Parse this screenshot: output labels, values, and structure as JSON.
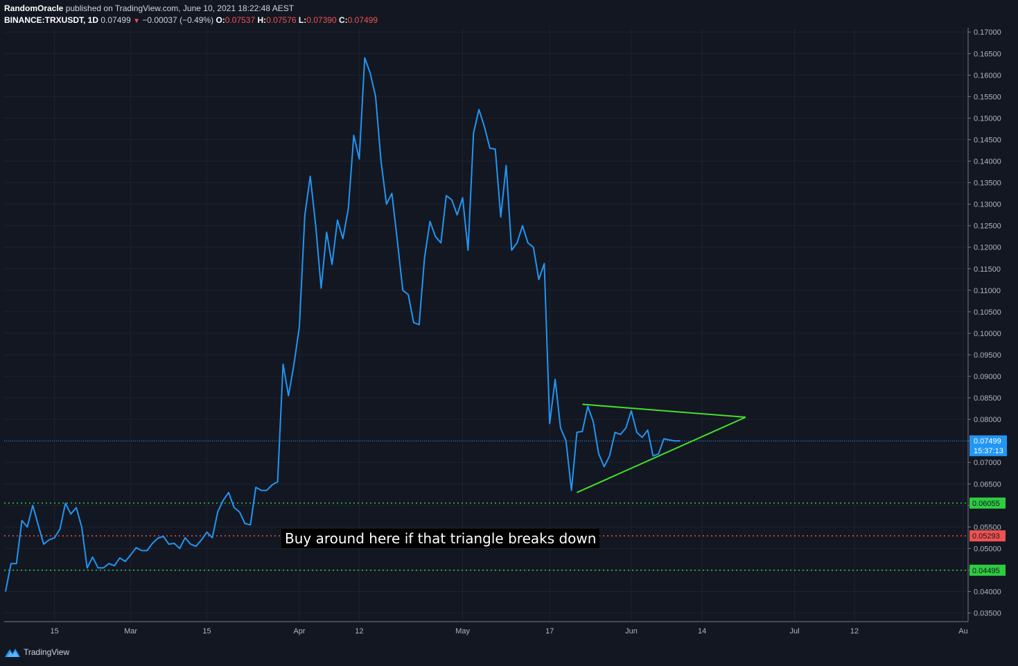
{
  "header": {
    "author": "RandomOracle",
    "published": "published on TradingView.com, June 10, 2021 18:22:48 AEST",
    "symbol": "BINANCE:TRXUSDT, 1D",
    "price": "0.07499",
    "change_arrow": "▼",
    "change": "−0.00037 (−0.49%)",
    "o_label": "O:",
    "o_value": "0.07537",
    "h_label": "H:",
    "h_value": "0.07576",
    "l_label": "L:",
    "l_value": "0.07390",
    "c_label": "C:",
    "c_value": "0.07499"
  },
  "footer": {
    "brand": "TradingView",
    "logo_icon": "tradingview-logo-icon"
  },
  "annotation": "Buy around here if that triangle breaks down",
  "colors": {
    "background": "#131722",
    "line": "#2196f3",
    "triangle": "#44e02c",
    "support": "#2ecc40",
    "stop": "#ef5350",
    "last_price_bg": "#2196f3"
  },
  "chart_data": {
    "type": "line",
    "title": "",
    "xlabel": "",
    "ylabel": "",
    "y_axis_position": "right",
    "ylim": [
      0.033,
      0.171
    ],
    "y_ticks": [
      "0.17000",
      "0.16500",
      "0.16000",
      "0.15500",
      "0.15000",
      "0.14500",
      "0.14000",
      "0.13500",
      "0.13000",
      "0.12500",
      "0.12000",
      "0.11500",
      "0.11000",
      "0.10500",
      "0.10000",
      "0.09500",
      "0.09000",
      "0.08500",
      "0.08000",
      "0.07500",
      "0.07000",
      "0.06500",
      "0.06000",
      "0.05500",
      "0.05000",
      "0.04500",
      "0.04000",
      "0.03500"
    ],
    "x_start": "2021-02-06",
    "x_end": "2021-08-01",
    "x_ticks": [
      {
        "date": "2021-02-15",
        "label": "15"
      },
      {
        "date": "2021-03-01",
        "label": "Mar"
      },
      {
        "date": "2021-03-15",
        "label": "15"
      },
      {
        "date": "2021-04-01",
        "label": "Apr"
      },
      {
        "date": "2021-04-12",
        "label": "12"
      },
      {
        "date": "2021-05-01",
        "label": "May"
      },
      {
        "date": "2021-05-17",
        "label": "17"
      },
      {
        "date": "2021-06-01",
        "label": "Jun"
      },
      {
        "date": "2021-06-14",
        "label": "14"
      },
      {
        "date": "2021-07-01",
        "label": "Jul"
      },
      {
        "date": "2021-07-12",
        "label": "12"
      },
      {
        "date": "2021-08-01",
        "label": "Au"
      }
    ],
    "series": [
      {
        "x": [
          "2021-02-06",
          "2021-02-07",
          "2021-02-08",
          "2021-02-09",
          "2021-02-10",
          "2021-02-11",
          "2021-02-12",
          "2021-02-13",
          "2021-02-14",
          "2021-02-15",
          "2021-02-16",
          "2021-02-17",
          "2021-02-18",
          "2021-02-19",
          "2021-02-20",
          "2021-02-21",
          "2021-02-22",
          "2021-02-23",
          "2021-02-24",
          "2021-02-25",
          "2021-02-26",
          "2021-02-27",
          "2021-02-28",
          "2021-03-01",
          "2021-03-02",
          "2021-03-03",
          "2021-03-04",
          "2021-03-05",
          "2021-03-06",
          "2021-03-07",
          "2021-03-08",
          "2021-03-09",
          "2021-03-10",
          "2021-03-11",
          "2021-03-12",
          "2021-03-13",
          "2021-03-14",
          "2021-03-15",
          "2021-03-16",
          "2021-03-17",
          "2021-03-18",
          "2021-03-19",
          "2021-03-20",
          "2021-03-21",
          "2021-03-22",
          "2021-03-23",
          "2021-03-24",
          "2021-03-25",
          "2021-03-26",
          "2021-03-27",
          "2021-03-28",
          "2021-03-29",
          "2021-03-30",
          "2021-03-31",
          "2021-04-01",
          "2021-04-02",
          "2021-04-03",
          "2021-04-04",
          "2021-04-05",
          "2021-04-06",
          "2021-04-07",
          "2021-04-08",
          "2021-04-09",
          "2021-04-10",
          "2021-04-11",
          "2021-04-12",
          "2021-04-13",
          "2021-04-14",
          "2021-04-15",
          "2021-04-16",
          "2021-04-17",
          "2021-04-18",
          "2021-04-19",
          "2021-04-20",
          "2021-04-21",
          "2021-04-22",
          "2021-04-23",
          "2021-04-24",
          "2021-04-25",
          "2021-04-26",
          "2021-04-27",
          "2021-04-28",
          "2021-04-29",
          "2021-04-30",
          "2021-05-01",
          "2021-05-02",
          "2021-05-03",
          "2021-05-04",
          "2021-05-05",
          "2021-05-06",
          "2021-05-07",
          "2021-05-08",
          "2021-05-09",
          "2021-05-10",
          "2021-05-11",
          "2021-05-12",
          "2021-05-13",
          "2021-05-14",
          "2021-05-15",
          "2021-05-16",
          "2021-05-17",
          "2021-05-18",
          "2021-05-19",
          "2021-05-20",
          "2021-05-21",
          "2021-05-22",
          "2021-05-23",
          "2021-05-24",
          "2021-05-25",
          "2021-05-26",
          "2021-05-27",
          "2021-05-28",
          "2021-05-29",
          "2021-05-30",
          "2021-05-31",
          "2021-06-01",
          "2021-06-02",
          "2021-06-03",
          "2021-06-04",
          "2021-06-05",
          "2021-06-06",
          "2021-06-07",
          "2021-06-08",
          "2021-06-09",
          "2021-06-10"
        ],
        "y": [
          0.04,
          0.0465,
          0.0465,
          0.0565,
          0.055,
          0.06,
          0.0555,
          0.051,
          0.052,
          0.0525,
          0.0545,
          0.0605,
          0.058,
          0.0595,
          0.055,
          0.0455,
          0.048,
          0.0455,
          0.0455,
          0.0465,
          0.046,
          0.0478,
          0.047,
          0.0485,
          0.0502,
          0.0495,
          0.0495,
          0.0512,
          0.0524,
          0.0528,
          0.051,
          0.0512,
          0.05,
          0.0525,
          0.051,
          0.0505,
          0.052,
          0.0538,
          0.0525,
          0.0585,
          0.0612,
          0.063,
          0.0595,
          0.0585,
          0.0558,
          0.0555,
          0.0642,
          0.0635,
          0.0635,
          0.0648,
          0.0655,
          0.0928,
          0.0855,
          0.0928,
          0.1015,
          0.1275,
          0.1365,
          0.125,
          0.1105,
          0.1235,
          0.116,
          0.1263,
          0.122,
          0.129,
          0.146,
          0.1405,
          0.164,
          0.1605,
          0.155,
          0.14,
          0.13,
          0.1325,
          0.1215,
          0.11,
          0.109,
          0.1025,
          0.102,
          0.1175,
          0.126,
          0.1225,
          0.121,
          0.132,
          0.131,
          0.1275,
          0.1315,
          0.1193,
          0.1465,
          0.152,
          0.148,
          0.143,
          0.1428,
          0.127,
          0.139,
          0.1193,
          0.121,
          0.125,
          0.121,
          0.12,
          0.1125,
          0.1162,
          0.079,
          0.0893,
          0.078,
          0.075,
          0.0635,
          0.077,
          0.0772,
          0.083,
          0.0795,
          0.072,
          0.069,
          0.0715,
          0.077,
          0.0765,
          0.078,
          0.082,
          0.077,
          0.0758,
          0.0775,
          0.0715,
          0.072,
          0.0755,
          0.0752,
          0.075,
          0.075
        ]
      }
    ],
    "horizontal_levels": [
      {
        "value": 0.06055,
        "label": "0.06055",
        "color": "#2ecc40",
        "style": "dotted"
      },
      {
        "value": 0.05293,
        "label": "0.05293",
        "color": "#ef5350",
        "style": "dotted"
      },
      {
        "value": 0.04495,
        "label": "0.04495",
        "color": "#2ecc40",
        "style": "dotted"
      }
    ],
    "last_price": {
      "value": 0.07499,
      "label": "0.07499",
      "countdown": "15:37:13"
    },
    "triangle": {
      "upper": [
        {
          "date": "2021-05-23",
          "y": 0.0835
        },
        {
          "date": "2021-06-22",
          "y": 0.0805
        }
      ],
      "lower": [
        {
          "date": "2021-05-22",
          "y": 0.063
        },
        {
          "date": "2021-06-22",
          "y": 0.0805
        }
      ]
    },
    "grid": true
  }
}
